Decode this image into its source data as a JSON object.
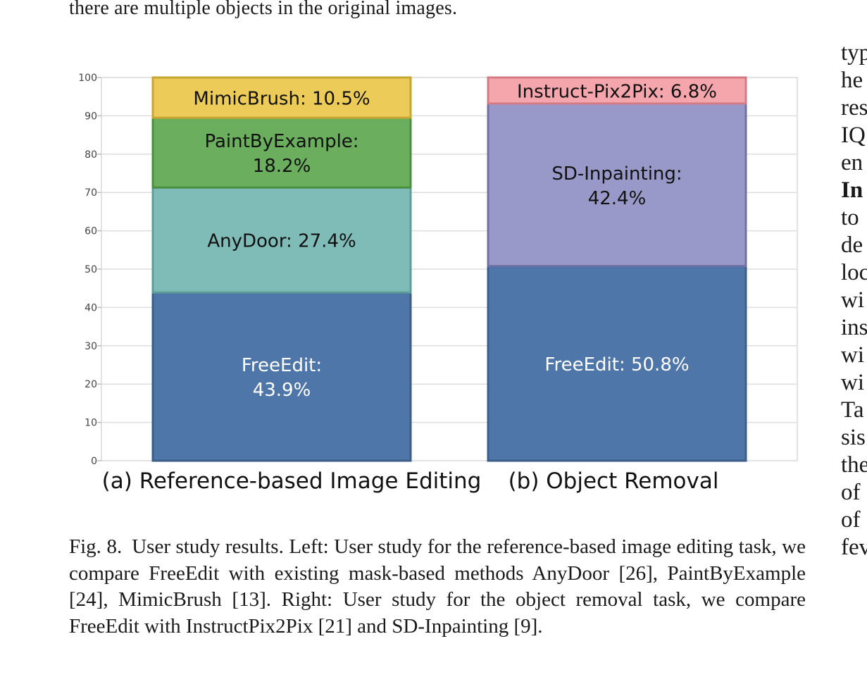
{
  "page": {
    "top_text": "there are multiple objects in the original images.",
    "right_column_fragments": [
      "typ",
      "he",
      "res",
      "IQ",
      "en",
      "In",
      "to",
      "de",
      "loc",
      "wi",
      "ins",
      "wi",
      "wi",
      "Ta",
      "sis",
      "the",
      "of",
      "of",
      "fev"
    ],
    "right_column_bold_index": 5
  },
  "caption": {
    "label": "Fig. 8.",
    "text": "User study results. Left: User study for the reference-based image editing task, we compare FreeEdit with existing mask-based methods AnyDoor [26], PaintByExample [24], MimicBrush [13]. Right: User study for the object removal task, we compare FreeEdit with InstructPix2Pix [21] and SD-Inpainting [9]."
  },
  "chart_data": {
    "type": "bar",
    "stacked": true,
    "ylim": [
      0,
      100
    ],
    "yticks": [
      0,
      10,
      20,
      30,
      40,
      50,
      60,
      70,
      80,
      90,
      100
    ],
    "grid": true,
    "categories": [
      "(a) Reference-based Image Editing",
      "(b) Object Removal"
    ],
    "stacks": [
      {
        "category": "(a) Reference-based Image Editing",
        "segments": [
          {
            "label_lines": [
              "FreeEdit:",
              "43.9%"
            ],
            "value": 43.9,
            "fill": "#4f76a8",
            "stroke": "#3c5f8a",
            "text_color": "#ffffff"
          },
          {
            "label_lines": [
              "AnyDoor: 27.4%"
            ],
            "value": 27.4,
            "fill": "#7fbcb8",
            "stroke": "#5f9e98",
            "text_color": "#111111"
          },
          {
            "label_lines": [
              "PaintByExample:",
              "18.2%"
            ],
            "value": 18.2,
            "fill": "#6aae5e",
            "stroke": "#4a8f3f",
            "text_color": "#111111"
          },
          {
            "label_lines": [
              "MimicBrush: 10.5%"
            ],
            "value": 10.5,
            "fill": "#eccb58",
            "stroke": "#c7a532",
            "text_color": "#111111"
          }
        ]
      },
      {
        "category": "(b) Object Removal",
        "segments": [
          {
            "label_lines": [
              "FreeEdit: 50.8%"
            ],
            "value": 50.8,
            "fill": "#4f76a8",
            "stroke": "#3c5f8a",
            "text_color": "#ffffff"
          },
          {
            "label_lines": [
              "SD-Inpainting:",
              "42.4%"
            ],
            "value": 42.4,
            "fill": "#9899c8",
            "stroke": "#6f70a3",
            "text_color": "#111111"
          },
          {
            "label_lines": [
              "Instruct-Pix2Pix: 6.8%"
            ],
            "value": 6.8,
            "fill": "#f5a6ad",
            "stroke": "#d47a84",
            "text_color": "#111111"
          }
        ]
      }
    ]
  }
}
